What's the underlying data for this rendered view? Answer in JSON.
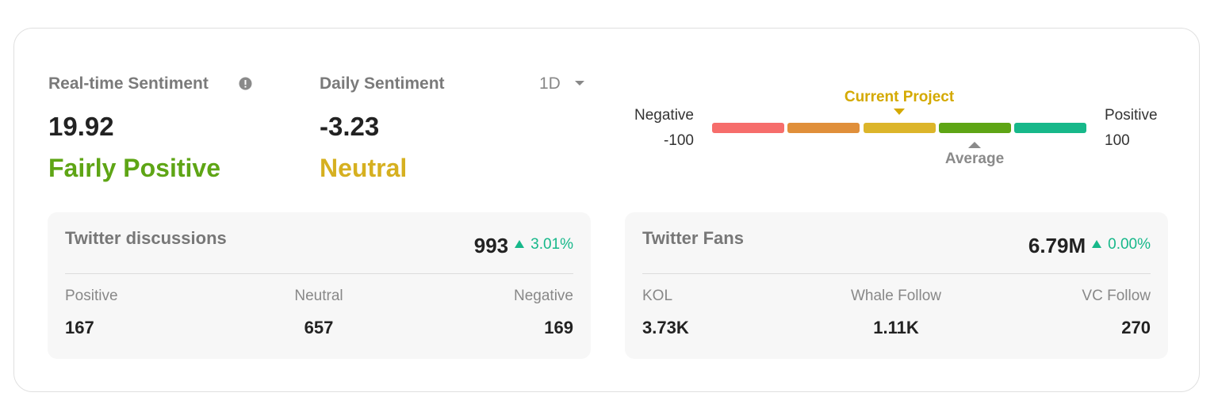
{
  "sentiment": {
    "realtime": {
      "label": "Real-time Sentiment",
      "value": "19.92",
      "status": "Fairly Positive"
    },
    "daily": {
      "label": "Daily Sentiment",
      "value": "-3.23",
      "status": "Neutral",
      "period": "1D"
    },
    "gauge": {
      "negative_label": "Negative",
      "min": "-100",
      "positive_label": "Positive",
      "max": "100",
      "current_label": "Current Project",
      "average_label": "Average"
    }
  },
  "cards": [
    {
      "title": "Twitter discussions",
      "total": "993",
      "change": "3.01%",
      "items": [
        {
          "label": "Positive",
          "value": "167"
        },
        {
          "label": "Neutral",
          "value": "657"
        },
        {
          "label": "Negative",
          "value": "169"
        }
      ]
    },
    {
      "title": "Twitter Fans",
      "total": "6.79M",
      "change": "0.00%",
      "items": [
        {
          "label": "KOL",
          "value": "3.73K"
        },
        {
          "label": "Whale Follow",
          "value": "1.11K"
        },
        {
          "label": "VC Follow",
          "value": "270"
        }
      ]
    }
  ]
}
